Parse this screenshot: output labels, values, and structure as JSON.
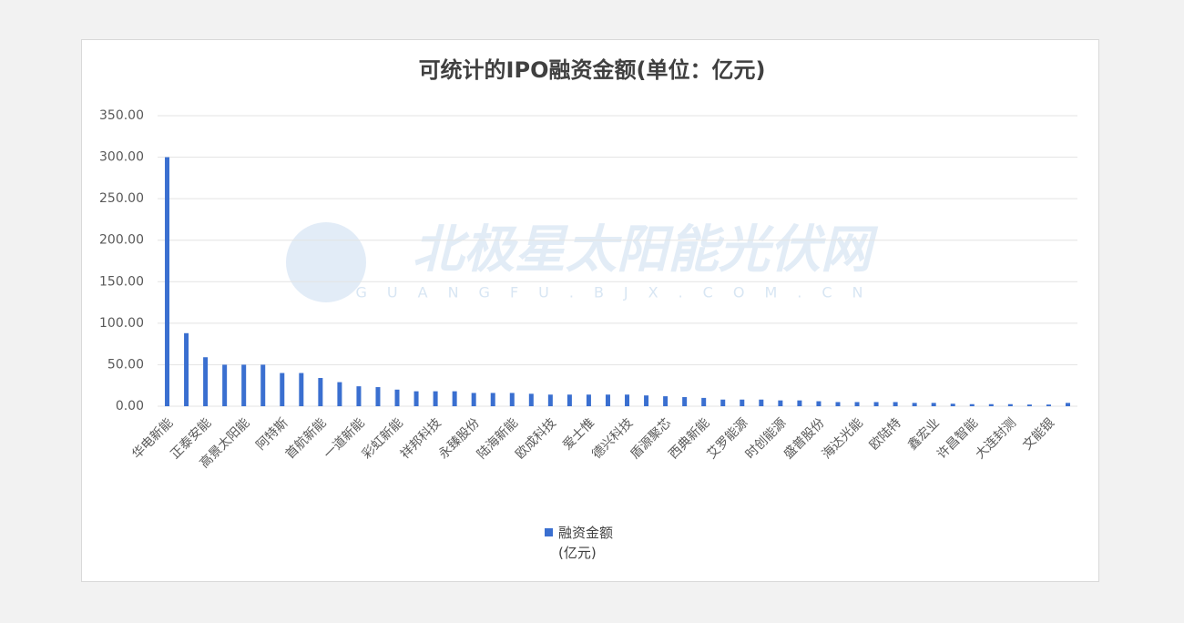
{
  "chart_data": {
    "type": "bar",
    "title": "可统计的IPO融资金额(单位：亿元)",
    "watermark": "北极星太阳能光伏网",
    "watermark_sub": "GUANGFU.BJX.COM.CN",
    "categories": [
      "华电新能",
      null,
      "正泰安能",
      null,
      "高景太阳能",
      null,
      "阿特斯",
      null,
      "首航新能",
      null,
      "一道新能",
      null,
      "彩虹新能",
      null,
      "祥邦科技",
      null,
      "永臻股份",
      null,
      "陆海新能",
      null,
      "欧成科技",
      null,
      "爱士惟",
      null,
      "德兴科技",
      null,
      "盾源聚芯",
      null,
      "西典新能",
      null,
      "艾罗能源",
      null,
      "时创能源",
      null,
      "盛普股份",
      null,
      "海达光能",
      null,
      "欧陆特",
      null,
      "鑫宏业",
      null,
      "许昌智能",
      null,
      "大连封测",
      null,
      "文能银",
      null
    ],
    "series": [
      {
        "name": "融资金额 (亿元)",
        "color": "#3a6fd0",
        "values": [
          300,
          88,
          59,
          50,
          50,
          50,
          40,
          40,
          34,
          29,
          24,
          23,
          20,
          18,
          18,
          18,
          16,
          16,
          16,
          15,
          14,
          14,
          14,
          14,
          14,
          13,
          12,
          11,
          10,
          8,
          8,
          8,
          7,
          7,
          6,
          5,
          5,
          5,
          5,
          4,
          4,
          3,
          2.5,
          2.5,
          2.5,
          2,
          2,
          4
        ]
      }
    ],
    "ylim": [
      0,
      350
    ],
    "yticks": [
      {
        "value": 0,
        "label": "0.00"
      },
      {
        "value": 50,
        "label": "50.00"
      },
      {
        "value": 100,
        "label": "100.00"
      },
      {
        "value": 150,
        "label": "150.00"
      },
      {
        "value": 200,
        "label": "200.00"
      },
      {
        "value": 250,
        "label": "250.00"
      },
      {
        "value": 300,
        "label": "300.00"
      },
      {
        "value": 350,
        "label": "350.00"
      }
    ],
    "grid": true,
    "legend": "bottom"
  }
}
